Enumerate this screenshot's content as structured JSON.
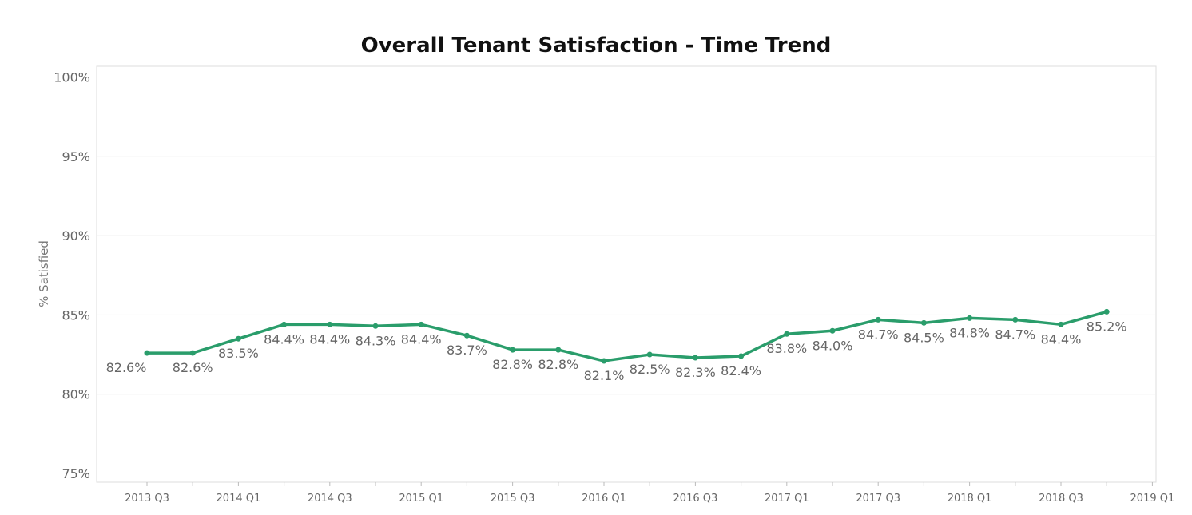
{
  "chart_data": {
    "type": "line",
    "title": "Overall Tenant Satisfaction - Time Trend",
    "xlabel": "",
    "ylabel": "% Satisfied",
    "ylim": [
      75,
      100
    ],
    "yticks": [
      "75%",
      "80%",
      "85%",
      "90%",
      "95%",
      "100%"
    ],
    "xticks": [
      "2013 Q3",
      "2014 Q1",
      "2014 Q3",
      "2015 Q1",
      "2015 Q3",
      "2016 Q1",
      "2016 Q3",
      "2017 Q1",
      "2017 Q3",
      "2018 Q1",
      "2018 Q3",
      "2019 Q1"
    ],
    "grid": true,
    "color": "#2a9d6b",
    "series": [
      {
        "x": [
          "2013 Q3",
          "2013 Q4",
          "2014 Q1",
          "2014 Q2",
          "2014 Q3",
          "2014 Q4",
          "2015 Q1",
          "2015 Q2",
          "2015 Q3",
          "2015 Q4",
          "2016 Q1",
          "2016 Q2",
          "2016 Q3",
          "2016 Q4",
          "2017 Q1",
          "2017 Q2",
          "2017 Q3",
          "2017 Q4",
          "2018 Q1",
          "2018 Q2",
          "2018 Q3",
          "2018 Q4"
        ],
        "values": [
          82.6,
          82.6,
          83.5,
          84.4,
          84.4,
          84.3,
          84.4,
          83.7,
          82.8,
          82.8,
          82.1,
          82.5,
          82.3,
          82.4,
          83.8,
          84.0,
          84.7,
          84.5,
          84.8,
          84.7,
          84.4,
          85.2
        ],
        "labels": [
          "82.6%",
          "82.6%",
          "83.5%",
          "84.4%",
          "84.4%",
          "84.3%",
          "84.4%",
          "83.7%",
          "82.8%",
          "82.8%",
          "82.1%",
          "82.5%",
          "82.3%",
          "82.4%",
          "83.8%",
          "84.0%",
          "84.7%",
          "84.5%",
          "84.8%",
          "84.7%",
          "84.4%",
          "85.2%"
        ]
      }
    ]
  }
}
